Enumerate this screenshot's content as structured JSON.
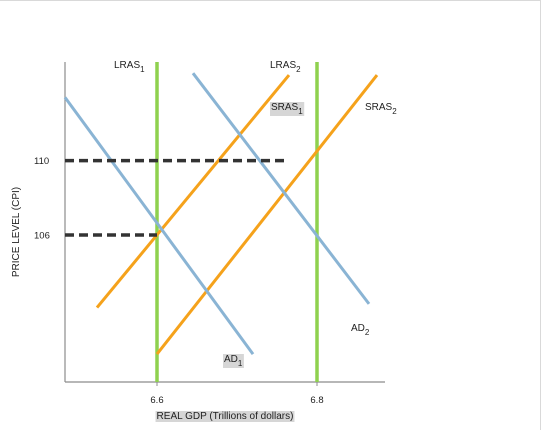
{
  "chart_data": {
    "type": "line",
    "title": "",
    "xlabel": "REAL GDP (Trillions of dollars)",
    "ylabel": "PRICE LEVEL (CPI)",
    "xlim": [
      6.485,
      6.885
    ],
    "ylim": [
      98.1,
      115.3
    ],
    "x_ticks": [
      {
        "value": 6.6,
        "label": "6.6"
      },
      {
        "value": 6.8,
        "label": "6.8"
      }
    ],
    "y_ticks": [
      {
        "value": 110,
        "label": "110"
      },
      {
        "value": 106,
        "label": "106"
      }
    ],
    "grid": false,
    "series": [
      {
        "name": "LRAS1",
        "label_main": "LRAS",
        "label_sub": "1",
        "kind": "vertical",
        "x": 6.6,
        "color": "#8fd14f"
      },
      {
        "name": "LRAS2",
        "label_main": "LRAS",
        "label_sub": "2",
        "kind": "vertical",
        "x": 6.8,
        "color": "#8fd14f"
      },
      {
        "name": "SRAS1",
        "label_main": "SRAS",
        "label_sub": "1",
        "kind": "line",
        "points": [
          [
            6.525,
            102.1
          ],
          [
            6.765,
            114.6
          ]
        ],
        "color": "#f5a21b",
        "label_highlight": true
      },
      {
        "name": "SRAS2",
        "label_main": "SRAS",
        "label_sub": "2",
        "kind": "line",
        "points": [
          [
            6.6,
            99.6
          ],
          [
            6.875,
            114.6
          ]
        ],
        "color": "#f5a21b",
        "label_highlight": false
      },
      {
        "name": "AD1",
        "label_main": "AD",
        "label_sub": "1",
        "kind": "line",
        "points": [
          [
            6.485,
            113.4
          ],
          [
            6.72,
            99.6
          ]
        ],
        "color": "#8ab4d4",
        "label_highlight": true
      },
      {
        "name": "AD2",
        "label_main": "AD",
        "label_sub": "2",
        "kind": "line",
        "points": [
          [
            6.645,
            114.7
          ],
          [
            6.865,
            102.3
          ]
        ],
        "color": "#8ab4d4",
        "label_highlight": false
      }
    ],
    "reference_lines": [
      {
        "y": 110,
        "x_start": 6.485,
        "x_end": 6.76,
        "style": "dashed",
        "color": "#333333"
      },
      {
        "y": 106,
        "x_start": 6.485,
        "x_end": 6.6,
        "style": "dashed",
        "color": "#333333"
      }
    ]
  }
}
